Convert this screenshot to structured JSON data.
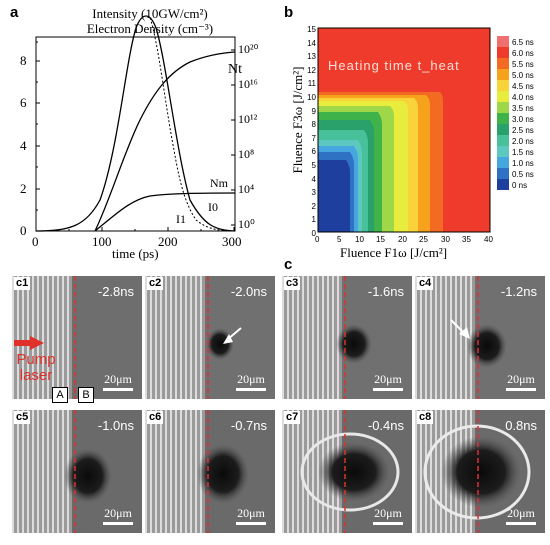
{
  "panel_a": {
    "letter": "a",
    "title_line1": "Intensity (10GW/cm²)",
    "title_line2": "Electron Density (cm⁻³)",
    "xlabel": "time (ps)",
    "x_ticks": [
      "0",
      "100",
      "200",
      "300"
    ],
    "y_left_ticks": [
      "0",
      "2",
      "4",
      "6",
      "8"
    ],
    "y_right_ticks": [
      "10⁰",
      "10⁴",
      "10⁸",
      "10¹²",
      "10¹⁶",
      "10²⁰"
    ],
    "curve_labels": [
      "Nt",
      "Nm",
      "I0",
      "I1"
    ]
  },
  "panel_b": {
    "letter": "b",
    "annotation": "Heating time t_heat",
    "xlabel": "Fluence F1ω [J/cm²]",
    "ylabel": "Fluence F3ω [J/cm²]",
    "x_ticks": [
      "0",
      "5",
      "10",
      "15",
      "20",
      "25",
      "30",
      "35",
      "40"
    ],
    "y_ticks": [
      "0",
      "1",
      "2",
      "3",
      "4",
      "5",
      "6",
      "7",
      "8",
      "9",
      "10",
      "11",
      "12",
      "13",
      "14",
      "15"
    ],
    "legend": [
      {
        "label": "6.5 ns",
        "color": "#f07070"
      },
      {
        "label": "6.0 ns",
        "color": "#ee3b2c"
      },
      {
        "label": "5.5 ns",
        "color": "#f36a22"
      },
      {
        "label": "5.0 ns",
        "color": "#f6a21c"
      },
      {
        "label": "4.5 ns",
        "color": "#f8d43a"
      },
      {
        "label": "4.0 ns",
        "color": "#e8ec3c"
      },
      {
        "label": "3.5 ns",
        "color": "#9ed848"
      },
      {
        "label": "3.0 ns",
        "color": "#3fb34a"
      },
      {
        "label": "2.5 ns",
        "color": "#2aa06a"
      },
      {
        "label": "2.0 ns",
        "color": "#48c09a"
      },
      {
        "label": "1.5 ns",
        "color": "#5cc8c0"
      },
      {
        "label": "1.0 ns",
        "color": "#46a6e0"
      },
      {
        "label": "0.5 ns",
        "color": "#2f72c4"
      },
      {
        "label": "0 ns",
        "color": "#1e3f9e"
      }
    ]
  },
  "panel_c": {
    "letter": "c",
    "pump_label_line1": "Pump",
    "pump_label_line2": "laser",
    "region_a": "A",
    "region_b": "B",
    "tiles": [
      {
        "label": "c1",
        "time": "-2.8ns",
        "scale": "20μm"
      },
      {
        "label": "c2",
        "time": "-2.0ns",
        "scale": "20μm"
      },
      {
        "label": "c3",
        "time": "-1.6ns",
        "scale": "20μm"
      },
      {
        "label": "c4",
        "time": "-1.2ns",
        "scale": "20μm"
      },
      {
        "label": "c5",
        "time": "-1.0ns",
        "scale": "20μm"
      },
      {
        "label": "c6",
        "time": "-0.7ns",
        "scale": "20μm"
      },
      {
        "label": "c7",
        "time": "-0.4ns",
        "scale": "20μm"
      },
      {
        "label": "c8",
        "time": "0.8ns",
        "scale": "20μm"
      }
    ]
  }
}
